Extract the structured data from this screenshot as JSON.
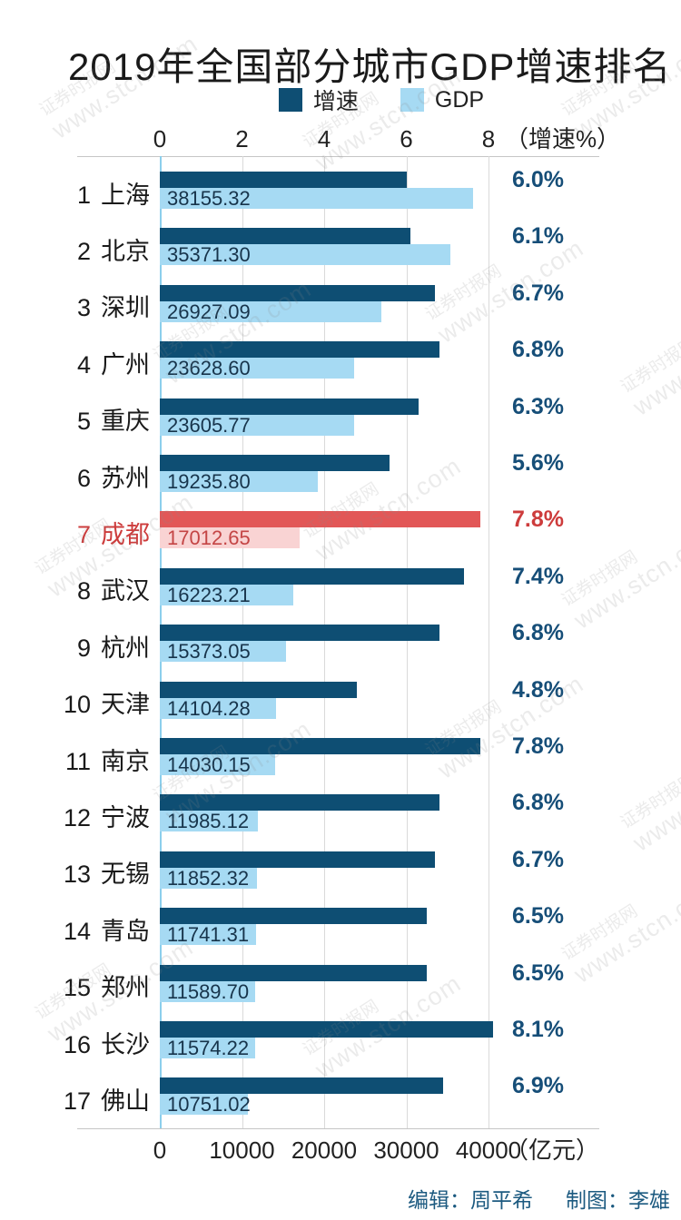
{
  "title": "2019年全国部分城市GDP增速排名",
  "legend": {
    "growth_label": "增速",
    "gdp_label": "GDP"
  },
  "watermark": {
    "line1": "证券时报网",
    "line2": "www.stcn.com"
  },
  "footer": {
    "editor_label": "编辑：周平希",
    "designer_label": "制图：李雄"
  },
  "chart_data": {
    "type": "bar",
    "orientation": "horizontal",
    "title": "2019年全国部分城市GDP增速排名",
    "legend_entries": [
      "增速",
      "GDP"
    ],
    "grid": true,
    "top_axis": {
      "label": "（增速%）",
      "ticks": [
        "0",
        "2",
        "4",
        "6",
        "8"
      ],
      "tick_values": [
        0,
        2,
        4,
        6,
        8
      ],
      "range": [
        0,
        10.7
      ],
      "unit": "%"
    },
    "bottom_axis": {
      "label": "（亿元）",
      "ticks": [
        "0",
        "10000",
        "20000",
        "30000",
        "40000"
      ],
      "tick_values": [
        0,
        10000,
        20000,
        30000,
        40000
      ],
      "range": [
        0,
        53500
      ],
      "unit": "亿元"
    },
    "series": [
      {
        "name": "增速",
        "unit": "%"
      },
      {
        "name": "GDP",
        "unit": "亿元"
      }
    ],
    "rows": [
      {
        "rank": "1",
        "city": "上海",
        "growth_pct": 6.0,
        "growth_label": "6.0%",
        "gdp": 38155.32,
        "gdp_label": "38155.32",
        "highlight": false
      },
      {
        "rank": "2",
        "city": "北京",
        "growth_pct": 6.1,
        "growth_label": "6.1%",
        "gdp": 35371.3,
        "gdp_label": "35371.30",
        "highlight": false
      },
      {
        "rank": "3",
        "city": "深圳",
        "growth_pct": 6.7,
        "growth_label": "6.7%",
        "gdp": 26927.09,
        "gdp_label": "26927.09",
        "highlight": false
      },
      {
        "rank": "4",
        "city": "广州",
        "growth_pct": 6.8,
        "growth_label": "6.8%",
        "gdp": 23628.6,
        "gdp_label": "23628.60",
        "highlight": false
      },
      {
        "rank": "5",
        "city": "重庆",
        "growth_pct": 6.3,
        "growth_label": "6.3%",
        "gdp": 23605.77,
        "gdp_label": "23605.77",
        "highlight": false
      },
      {
        "rank": "6",
        "city": "苏州",
        "growth_pct": 5.6,
        "growth_label": "5.6%",
        "gdp": 19235.8,
        "gdp_label": "19235.80",
        "highlight": false
      },
      {
        "rank": "7",
        "city": "成都",
        "growth_pct": 7.8,
        "growth_label": "7.8%",
        "gdp": 17012.65,
        "gdp_label": "17012.65",
        "highlight": true
      },
      {
        "rank": "8",
        "city": "武汉",
        "growth_pct": 7.4,
        "growth_label": "7.4%",
        "gdp": 16223.21,
        "gdp_label": "16223.21",
        "highlight": false
      },
      {
        "rank": "9",
        "city": "杭州",
        "growth_pct": 6.8,
        "growth_label": "6.8%",
        "gdp": 15373.05,
        "gdp_label": "15373.05",
        "highlight": false
      },
      {
        "rank": "10",
        "city": "天津",
        "growth_pct": 4.8,
        "growth_label": "4.8%",
        "gdp": 14104.28,
        "gdp_label": "14104.28",
        "highlight": false
      },
      {
        "rank": "11",
        "city": "南京",
        "growth_pct": 7.8,
        "growth_label": "7.8%",
        "gdp": 14030.15,
        "gdp_label": "14030.15",
        "highlight": false
      },
      {
        "rank": "12",
        "city": "宁波",
        "growth_pct": 6.8,
        "growth_label": "6.8%",
        "gdp": 11985.12,
        "gdp_label": "11985.12",
        "highlight": false
      },
      {
        "rank": "13",
        "city": "无锡",
        "growth_pct": 6.7,
        "growth_label": "6.7%",
        "gdp": 11852.32,
        "gdp_label": "11852.32",
        "highlight": false
      },
      {
        "rank": "14",
        "city": "青岛",
        "growth_pct": 6.5,
        "growth_label": "6.5%",
        "gdp": 11741.31,
        "gdp_label": "11741.31",
        "highlight": false
      },
      {
        "rank": "15",
        "city": "郑州",
        "growth_pct": 6.5,
        "growth_label": "6.5%",
        "gdp": 11589.7,
        "gdp_label": "11589.70",
        "highlight": false
      },
      {
        "rank": "16",
        "city": "长沙",
        "growth_pct": 8.1,
        "growth_label": "8.1%",
        "gdp": 11574.22,
        "gdp_label": "11574.22",
        "highlight": false
      },
      {
        "rank": "17",
        "city": "佛山",
        "growth_pct": 6.9,
        "growth_label": "6.9%",
        "gdp": 10751.02,
        "gdp_label": "10751.02",
        "highlight": false
      }
    ],
    "colors": {
      "growth_bar": "#0e4e73",
      "gdp_bar": "#a6daf3",
      "growth_bar_highlight": "#e25757",
      "gdp_bar_highlight": "#f9d3d3",
      "growth_value_text": "#164e78",
      "growth_value_text_highlight": "#cd3c3c",
      "city_label_text": "#1a1a1a",
      "city_label_text_highlight": "#cd3c3c",
      "gdp_value_text": "#17344b",
      "gdp_value_text_highlight": "#c44545",
      "zero_axis_line": "#8ccfec",
      "gridline": "#dadada",
      "axis_line": "#c6c6c6",
      "footer_text": "#1c5a80"
    }
  }
}
